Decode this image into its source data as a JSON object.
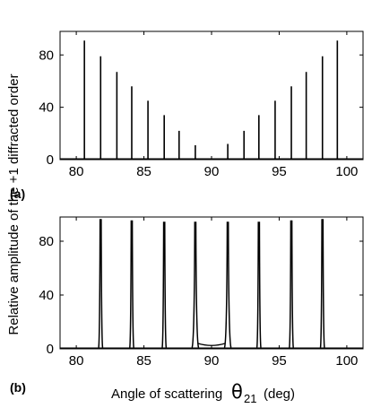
{
  "chart_data": [
    {
      "type": "line",
      "panel_label": "(a)",
      "xlim": [
        78.8,
        101.2
      ],
      "ylim": [
        0,
        98
      ],
      "xticks": [
        "80",
        "85",
        "90",
        "95",
        "100"
      ],
      "yticks": [
        "0",
        "40",
        "80"
      ],
      "series": [
        {
          "x": [
            80.6,
            81.8,
            83.0,
            84.1,
            85.3,
            86.5,
            87.6,
            88.8,
            91.2,
            92.4,
            93.5,
            94.7,
            95.9,
            97.0,
            98.2,
            99.3
          ],
          "y": [
            91,
            79,
            67,
            56,
            45,
            34,
            22,
            11,
            12,
            22,
            34,
            45,
            56,
            67,
            79,
            91
          ]
        }
      ],
      "grid": false
    },
    {
      "type": "line",
      "panel_label": "(b)",
      "xlim": [
        78.8,
        101.2
      ],
      "ylim": [
        0,
        98
      ],
      "xticks": [
        "80",
        "85",
        "90",
        "95",
        "100"
      ],
      "yticks": [
        "0",
        "40",
        "80"
      ],
      "series": [
        {
          "x": [
            81.8,
            84.1,
            86.5,
            88.8,
            91.2,
            93.5,
            95.9,
            98.2
          ],
          "y": [
            96,
            95,
            94,
            94,
            94,
            94,
            95,
            96
          ]
        }
      ],
      "grid": false
    }
  ],
  "ylabel": "Relative amplitude of the +1 diffracted order",
  "xlabel": {
    "text": "Angle of scattering",
    "symbol": "θ",
    "subscript": "21",
    "unit": "(deg)"
  }
}
